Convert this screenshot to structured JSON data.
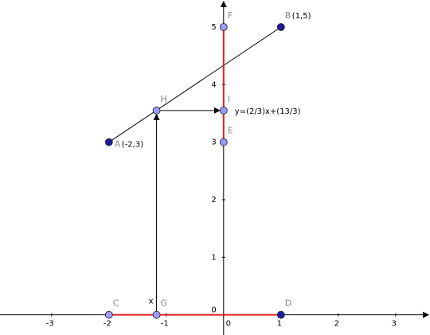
{
  "axes": {
    "xlim": [
      -3.9,
      3.6
    ],
    "ylim": [
      -0.35,
      5.47
    ],
    "xticks": [
      -3,
      -2,
      -1,
      0,
      1,
      2,
      3
    ],
    "yticks": [
      0,
      1,
      2,
      3,
      4,
      5
    ]
  },
  "points": [
    {
      "name": "A",
      "x": -2,
      "y": 3,
      "caption": "(-2,3)",
      "color": "#1c1c9c"
    },
    {
      "name": "B",
      "x": 1,
      "y": 5,
      "caption": "(1,5)",
      "color": "#1c1c9c"
    },
    {
      "name": "C",
      "x": -2,
      "y": 0,
      "color": "#9a9aff"
    },
    {
      "name": "D",
      "x": 1,
      "y": 0,
      "color": "#1c1c9c"
    },
    {
      "name": "E",
      "x": 0,
      "y": 3,
      "color": "#9a9aff"
    },
    {
      "name": "F",
      "x": 0,
      "y": 5,
      "color": "#9a9aff"
    },
    {
      "name": "G",
      "x": -1.17,
      "y": 0,
      "color": "#9a9aff"
    },
    {
      "name": "H",
      "x": -1.17,
      "y": 3.55,
      "color": "#9a9aff"
    },
    {
      "name": "I",
      "x": 0,
      "y": 3.55,
      "color": "#9a9aff"
    }
  ],
  "labels": {
    "line": "y=(2/3)x+(13/3)",
    "x": "x"
  }
}
